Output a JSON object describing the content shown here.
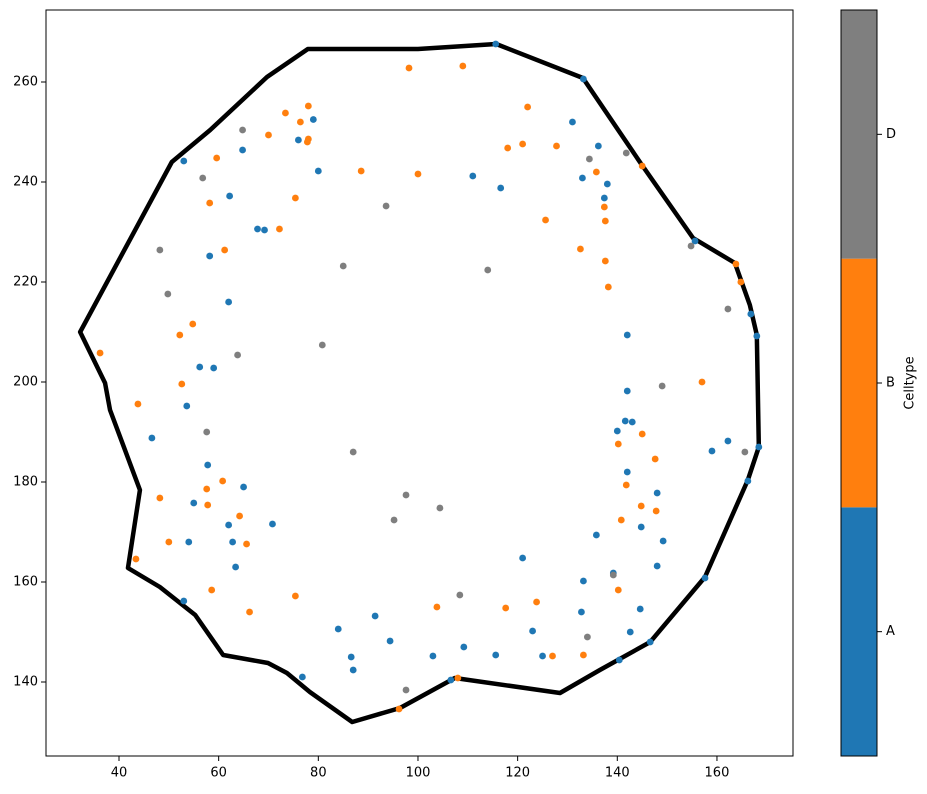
{
  "chart_data": {
    "type": "scatter",
    "xlim": [
      25.35,
      175.26
    ],
    "ylim": [
      125.2,
      274.4
    ],
    "xticks": [
      40,
      60,
      80,
      100,
      120,
      140,
      160
    ],
    "yticks": [
      140,
      160,
      180,
      200,
      220,
      240,
      260
    ],
    "colorbar_label": "Celltype",
    "boundary": {
      "color": "#000000",
      "x": [
        115.7,
        133.1,
        144.8,
        155.2,
        163.6,
        166.6,
        168.0,
        168.4,
        166.2,
        157.6,
        146.6,
        136.5,
        128.5,
        107.4,
        96.4,
        86.8,
        78.3,
        73.7,
        69.9,
        60.9,
        55.3,
        48.2,
        41.8,
        44.2,
        38.2,
        37.2,
        32.2,
        50.6,
        58.3,
        69.7,
        77.9,
        100.0
      ],
      "y": [
        267.6,
        260.8,
        243.6,
        228.8,
        223.8,
        215.4,
        209.4,
        187.0,
        180.4,
        161.0,
        148.0,
        142.4,
        137.8,
        140.8,
        134.8,
        132.0,
        138.0,
        141.8,
        143.8,
        145.4,
        153.4,
        159.0,
        162.8,
        178.4,
        194.4,
        199.8,
        210.0,
        244.0,
        250.4,
        261.0,
        266.6,
        266.6
      ]
    },
    "series": [
      {
        "name": "A",
        "color": "#1f77b4",
        "x": [
          115.6,
          133.2,
          79,
          131,
          53,
          64.8,
          76,
          136.2,
          62.2,
          80,
          111,
          116.6,
          133,
          138,
          137.4,
          67.8,
          69.2,
          58.2,
          62,
          142,
          56.2,
          59,
          53.6,
          142,
          141.6,
          143,
          140,
          46.6,
          162.2,
          159,
          57.8,
          142,
          65,
          148,
          55,
          70.8,
          62,
          144.8,
          54,
          62.8,
          149.2,
          135.8,
          63.4,
          121,
          148,
          139.2,
          133.2,
          157.6,
          166.2,
          168.4,
          168,
          166.8,
          155.6,
          53,
          144.6,
          132.8,
          91.4,
          84,
          123,
          142.6,
          94.4,
          109.2,
          146.6,
          86.6,
          103,
          115.6,
          125,
          140.4,
          87,
          76.8,
          106.6
        ],
        "y": [
          267.6,
          260.6,
          252.5,
          252,
          244.2,
          246.4,
          248.4,
          247.2,
          237.2,
          242.2,
          241.2,
          238.8,
          240.8,
          239.6,
          236.8,
          230.6,
          230.4,
          225.2,
          216,
          209.4,
          203,
          202.8,
          195.2,
          198.2,
          192.2,
          192,
          190.2,
          188.8,
          188.2,
          186.2,
          183.4,
          182,
          179,
          177.8,
          175.8,
          171.6,
          171.4,
          171,
          168,
          168,
          168.2,
          169.4,
          163,
          164.8,
          163.2,
          161.8,
          160.2,
          160.8,
          180.2,
          187,
          209.2,
          213.6,
          228.2,
          156.2,
          154.6,
          154,
          153.2,
          150.6,
          150.2,
          150,
          148.2,
          147,
          148,
          145,
          145.2,
          145.4,
          145.2,
          144.4,
          142.4,
          141,
          140.4
        ]
      },
      {
        "name": "B",
        "color": "#ff7f0e",
        "x": [
          78,
          122,
          73.4,
          76.4,
          70,
          78,
          77.8,
          121,
          118,
          127.8,
          59.6,
          145,
          135.8,
          88.6,
          100,
          75.4,
          58.2,
          137.4,
          137.6,
          125.6,
          72.2,
          61.2,
          132.6,
          137.6,
          163.8,
          164.8,
          138.2,
          54.8,
          52.2,
          36.2,
          52.6,
          157,
          43.8,
          145,
          140.2,
          147.6,
          60.8,
          57.6,
          141.8,
          48.2,
          57.8,
          144.8,
          147.8,
          64.2,
          140.8,
          50,
          65.6,
          43.4,
          58.6,
          140.2,
          75.4,
          123.8,
          103.8,
          117.6,
          66.2,
          127,
          133.2,
          108,
          96.2,
          98.2,
          109
        ],
        "y": [
          255.2,
          255,
          253.8,
          252,
          249.4,
          248.6,
          248,
          247.6,
          246.8,
          247.2,
          244.8,
          243.2,
          242,
          242.2,
          241.6,
          236.8,
          235.8,
          235,
          232.2,
          232.4,
          230.6,
          226.4,
          226.6,
          224.2,
          223.6,
          220,
          219,
          211.6,
          209.4,
          205.8,
          199.6,
          200,
          195.6,
          189.6,
          187.6,
          184.6,
          180.2,
          178.6,
          179.4,
          176.8,
          175.4,
          175.2,
          174.2,
          173.2,
          172.4,
          168,
          167.6,
          164.6,
          158.4,
          158.4,
          157.2,
          156,
          155,
          154.8,
          154,
          145.2,
          145.4,
          140.8,
          134.6,
          262.8,
          263.2
        ]
      },
      {
        "name": "D",
        "color": "#7f7f7f",
        "x": [
          64.8,
          141.8,
          134.4,
          56.8,
          93.6,
          154.8,
          48.2,
          85,
          114,
          162.2,
          49.8,
          80.8,
          63.8,
          149,
          57.6,
          87,
          165.6,
          97.6,
          104.4,
          95.2,
          139.2,
          108.4,
          134,
          97.6
        ],
        "y": [
          250.4,
          245.8,
          244.6,
          240.8,
          235.2,
          227.2,
          226.4,
          223.2,
          222.4,
          214.6,
          217.6,
          207.4,
          205.4,
          199.2,
          190,
          186,
          186,
          177.4,
          174.8,
          172.4,
          161.4,
          157.4,
          149,
          138.4
        ]
      }
    ]
  }
}
